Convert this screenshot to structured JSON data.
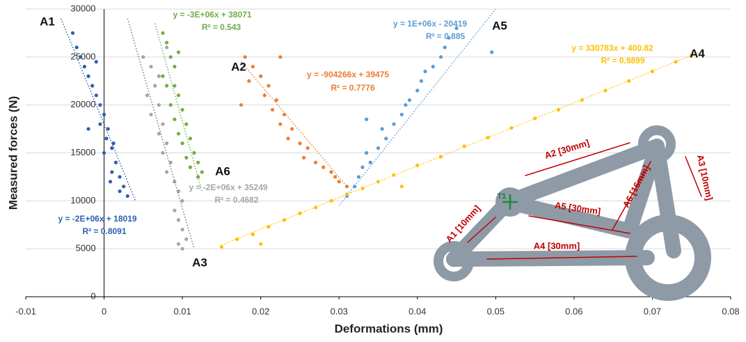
{
  "chart_data": {
    "type": "scatter",
    "x_label": "Deformations (mm)",
    "y_label": "Measured forces (N)",
    "xlim": [
      -0.01,
      0.08
    ],
    "xticks": [
      -0.01,
      0,
      0.01,
      0.02,
      0.03,
      0.04,
      0.05,
      0.06,
      0.07,
      0.08
    ],
    "ylim": [
      0,
      30000
    ],
    "yticks": [
      0,
      5000,
      10000,
      15000,
      20000,
      25000,
      30000
    ],
    "grid": true,
    "series": [
      {
        "name": "A1",
        "color": "#2e5fae",
        "equation": "y = -2E+06x + 18019",
        "r2": "R² = 0.8091",
        "x": [
          -0.004,
          -0.0035,
          -0.003,
          -0.0025,
          -0.002,
          -0.0015,
          -0.001,
          -0.0005,
          0,
          -0.0005,
          0.0005,
          0.0003,
          0.001,
          0,
          0.0015,
          0.001,
          0.002,
          0.0025,
          0.002,
          0.003,
          -0.002,
          -0.001,
          0.0012,
          0.0008
        ],
        "y": [
          27500,
          26000,
          25000,
          24000,
          23000,
          22000,
          21000,
          20000,
          19000,
          18000,
          17500,
          16500,
          15500,
          15000,
          14000,
          13000,
          12500,
          11500,
          11000,
          10500,
          17500,
          24500,
          16000,
          12000
        ],
        "trend": {
          "x": [
            -0.0055,
            0.004
          ],
          "y": [
            29000,
            10000
          ]
        }
      },
      {
        "name": "A3",
        "color": "#a5a5a5",
        "equation": "y = -2E+06x + 35249",
        "r2": "R² = 0.4682",
        "x": [
          0.005,
          0.006,
          0.007,
          0.0055,
          0.007,
          0.006,
          0.0075,
          0.007,
          0.008,
          0.0075,
          0.0085,
          0.008,
          0.009,
          0.0095,
          0.01,
          0.009,
          0.0095,
          0.01,
          0.0105,
          0.0095,
          0.01,
          0.0065,
          0.008
        ],
        "y": [
          25000,
          24000,
          23000,
          21000,
          20000,
          19000,
          18000,
          17000,
          16000,
          15000,
          14000,
          13000,
          12000,
          11000,
          10000,
          9000,
          8000,
          7000,
          6000,
          5500,
          5000,
          22000,
          26000
        ],
        "trend": {
          "x": [
            0.003,
            0.0115
          ],
          "y": [
            29000,
            5000
          ]
        }
      },
      {
        "name": "A6",
        "color": "#70ad47",
        "equation": "y = -3E+06x + 38071",
        "r2": "R² = 0.543",
        "x": [
          0.0075,
          0.008,
          0.0085,
          0.009,
          0.0075,
          0.009,
          0.0095,
          0.0085,
          0.01,
          0.009,
          0.0105,
          0.0095,
          0.011,
          0.01,
          0.0115,
          0.0105,
          0.012,
          0.011,
          0.0125,
          0.012,
          0.008,
          0.0095
        ],
        "y": [
          27500,
          26500,
          25000,
          24000,
          23000,
          22000,
          21000,
          20000,
          19500,
          18500,
          18000,
          17000,
          16500,
          16000,
          15000,
          14500,
          14000,
          13500,
          13000,
          12500,
          22000,
          25500
        ],
        "trend": {
          "x": [
            0.0065,
            0.0125
          ],
          "y": [
            28500,
            11000
          ]
        }
      },
      {
        "name": "A2",
        "color": "#ed7d31",
        "equation": "y = -904266x + 39475",
        "r2": "R² = 0.7776",
        "x": [
          0.018,
          0.019,
          0.0185,
          0.02,
          0.021,
          0.0205,
          0.022,
          0.0215,
          0.023,
          0.0225,
          0.024,
          0.0235,
          0.025,
          0.026,
          0.0255,
          0.027,
          0.028,
          0.029,
          0.0295,
          0.03,
          0.031,
          0.0175,
          0.0225
        ],
        "y": [
          25000,
          24000,
          22500,
          23000,
          22000,
          21000,
          20500,
          19500,
          19000,
          18000,
          17500,
          16500,
          16000,
          15500,
          14500,
          14000,
          13500,
          13000,
          12500,
          12000,
          11500,
          20000,
          25000
        ],
        "trend": {
          "x": [
            0.0175,
            0.031
          ],
          "y": [
            24500,
            11500
          ]
        }
      },
      {
        "name": "A5",
        "color": "#5b9bd5",
        "equation": "y = 1E+06x - 20419",
        "r2": "R² = 0.885",
        "x": [
          0.031,
          0.032,
          0.0325,
          0.033,
          0.034,
          0.0335,
          0.035,
          0.036,
          0.0355,
          0.037,
          0.038,
          0.0385,
          0.039,
          0.04,
          0.0405,
          0.041,
          0.042,
          0.043,
          0.0435,
          0.044,
          0.045,
          0.0495,
          0.0335
        ],
        "y": [
          10500,
          11500,
          12500,
          13500,
          14000,
          15000,
          15500,
          16500,
          17500,
          18000,
          19000,
          20000,
          20500,
          21500,
          22500,
          23500,
          24000,
          25000,
          26000,
          27000,
          28000,
          25500,
          18500
        ],
        "trend": {
          "x": [
            0.03,
            0.05
          ],
          "y": [
            9500,
            30000
          ]
        }
      },
      {
        "name": "A4",
        "color": "#ffc000",
        "equation": "y = 330783x + 400.82",
        "r2": "R² = 0.9899",
        "x": [
          0.015,
          0.017,
          0.019,
          0.021,
          0.023,
          0.025,
          0.027,
          0.029,
          0.031,
          0.033,
          0.035,
          0.037,
          0.04,
          0.043,
          0.046,
          0.049,
          0.052,
          0.055,
          0.058,
          0.061,
          0.064,
          0.067,
          0.07,
          0.073,
          0.075,
          0.02,
          0.038
        ],
        "y": [
          5200,
          6000,
          6500,
          7300,
          8000,
          8700,
          9300,
          10000,
          10700,
          11300,
          12000,
          12700,
          13700,
          14600,
          15700,
          16600,
          17600,
          18600,
          19500,
          20500,
          21500,
          22500,
          23500,
          24500,
          25200,
          5500,
          11500
        ],
        "trend": {
          "x": [
            0.015,
            0.076
          ],
          "y": [
            5400,
            25500
          ]
        }
      }
    ],
    "inset_labels": [
      "A2 [30mm]",
      "A3 [10mm]",
      "A6 [16mm]",
      "A5 [30mm]",
      "A1 [10mm]",
      "A4 [30mm]",
      "T1"
    ]
  }
}
